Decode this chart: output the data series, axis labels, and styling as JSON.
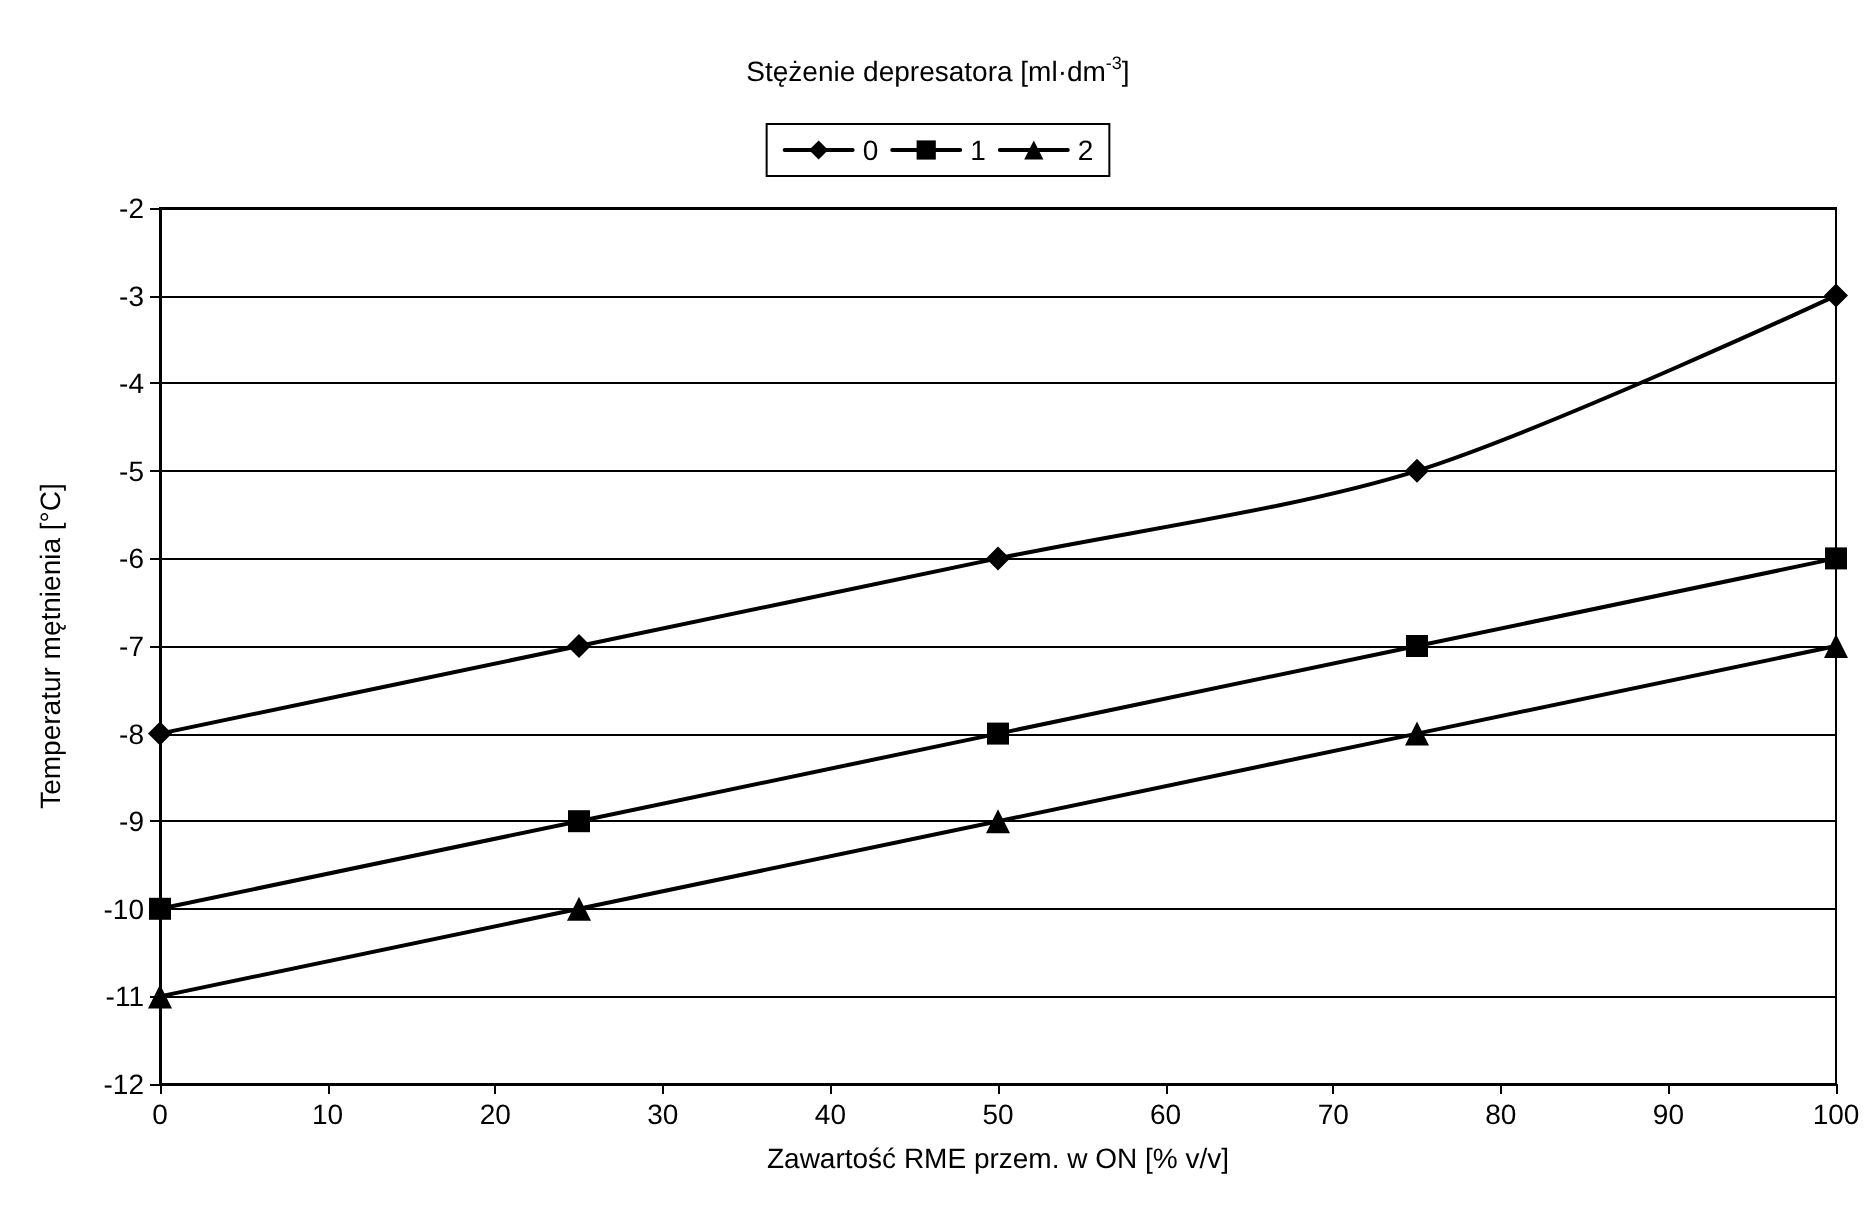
{
  "chart_data": {
    "type": "line",
    "legend_title": "Stężenie depresatora [ml·dm$^{-3}$]",
    "xlabel": "Zawartość RME przem. w ON [% v/v]",
    "ylabel": "Temperatur mętnienia [°C]",
    "x": [
      0,
      25,
      50,
      75,
      100
    ],
    "series": [
      {
        "name": "0",
        "color": "#000000",
        "marker": "diamond",
        "values": [
          -8,
          -7,
          -6,
          -5,
          -3
        ]
      },
      {
        "name": "1",
        "color": "#000000",
        "marker": "square",
        "values": [
          -10,
          -9,
          -8,
          -7,
          -6
        ]
      },
      {
        "name": "2",
        "color": "#000000",
        "marker": "triangle",
        "values": [
          -11,
          -10,
          -9,
          -8,
          -7
        ]
      }
    ],
    "xlim": [
      0,
      100
    ],
    "xticks": [
      0,
      10,
      20,
      30,
      40,
      50,
      60,
      70,
      80,
      90,
      100
    ],
    "ylim": [
      -12,
      -2
    ],
    "yticks": [
      -12,
      -11,
      -10,
      -9,
      -8,
      -7,
      -6,
      -5,
      -4,
      -3,
      -2
    ],
    "grid": "y",
    "legend": "top",
    "line_style": "solid"
  }
}
